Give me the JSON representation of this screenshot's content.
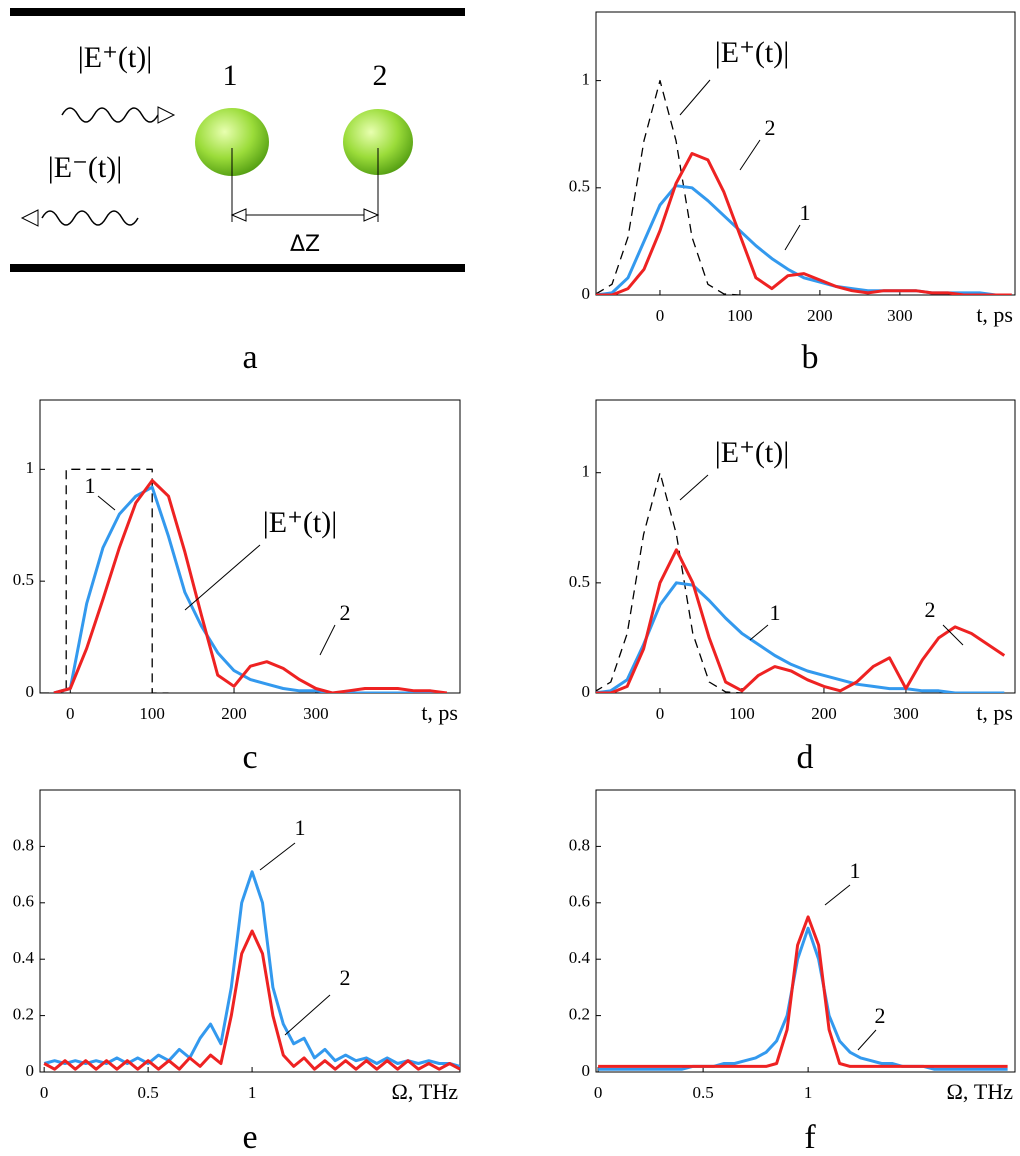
{
  "diagram": {
    "wave_forward": "|E⁺(t)|",
    "wave_backward": "|E⁻(t)|",
    "particle_1": "1",
    "particle_2": "2",
    "distance": "ΔZ",
    "panel_label": "a"
  },
  "chart_data": [
    {
      "type": "line",
      "panel_label": "b",
      "x_label": "t, ps",
      "xlim": [
        -80,
        444
      ],
      "ylim": [
        0,
        1.32
      ],
      "xticks": [
        0,
        100,
        200,
        300
      ],
      "yticks": [
        0,
        0.5,
        1
      ],
      "x": [
        -80,
        -60,
        -40,
        -20,
        0,
        20,
        40,
        60,
        80,
        100,
        120,
        140,
        160,
        180,
        200,
        220,
        240,
        260,
        280,
        300,
        320,
        340,
        360,
        380,
        400,
        420,
        440
      ],
      "series": [
        {
          "name": "|E⁺(t)|",
          "color": "#000000",
          "line_style": "dashed",
          "values": [
            0.005,
            0.05,
            0.27,
            0.72,
            1,
            0.72,
            0.27,
            0.05,
            0.005,
            0,
            null,
            null,
            null,
            null,
            null,
            null,
            null,
            null,
            null,
            null,
            null,
            null,
            null,
            null,
            null,
            null,
            null
          ]
        },
        {
          "name": "1",
          "color": "#3399ee",
          "values": [
            0,
            0.01,
            0.08,
            0.25,
            0.42,
            0.51,
            0.5,
            0.44,
            0.37,
            0.3,
            0.23,
            0.17,
            0.12,
            0.08,
            0.06,
            0.04,
            0.03,
            0.02,
            0.02,
            0.02,
            0.02,
            0.01,
            0.01,
            0.01,
            0.01,
            0,
            0
          ]
        },
        {
          "name": "2",
          "color": "#ee2222",
          "values": [
            0,
            0,
            0.03,
            0.12,
            0.3,
            0.52,
            0.66,
            0.63,
            0.48,
            0.28,
            0.08,
            0.03,
            0.09,
            0.1,
            0.07,
            0.04,
            0.02,
            0.01,
            0.02,
            0.02,
            0.02,
            0.01,
            0.01,
            0,
            0,
            0,
            0
          ]
        }
      ]
    },
    {
      "type": "line",
      "panel_label": "c",
      "x_label": "t, ps",
      "xlim": [
        -37,
        476
      ],
      "ylim": [
        0,
        1.31
      ],
      "xticks": [
        0,
        100,
        200,
        300
      ],
      "yticks": [
        0,
        0.5,
        1
      ],
      "x": [
        -20,
        0,
        20,
        40,
        60,
        80,
        100,
        120,
        140,
        160,
        180,
        200,
        220,
        240,
        260,
        280,
        300,
        320,
        340,
        360,
        380,
        400,
        420,
        440,
        460
      ],
      "series": [
        {
          "name": "|E⁺(t)|",
          "color": "#000000",
          "line_style": "dashed",
          "x": [
            -37,
            -5,
            -5,
            100,
            100,
            120
          ],
          "values": [
            0,
            0,
            1,
            1,
            0,
            0
          ]
        },
        {
          "name": "1",
          "color": "#3399ee",
          "values": [
            0,
            0.02,
            0.4,
            0.65,
            0.8,
            0.88,
            0.92,
            0.7,
            0.45,
            0.3,
            0.18,
            0.1,
            0.06,
            0.04,
            0.02,
            0.01,
            0.01,
            0,
            0,
            0,
            0,
            0,
            0,
            0,
            0
          ]
        },
        {
          "name": "2",
          "color": "#ee2222",
          "values": [
            0,
            0.02,
            0.2,
            0.42,
            0.65,
            0.85,
            0.95,
            0.88,
            0.63,
            0.35,
            0.08,
            0.03,
            0.12,
            0.14,
            0.11,
            0.06,
            0.02,
            0,
            0.01,
            0.02,
            0.02,
            0.02,
            0.01,
            0.01,
            0
          ]
        }
      ]
    },
    {
      "type": "line",
      "panel_label": "d",
      "x_label": "t, ps",
      "xlim": [
        -78,
        433
      ],
      "ylim": [
        0,
        1.33
      ],
      "xticks": [
        0,
        100,
        200,
        300
      ],
      "yticks": [
        0,
        0.5,
        1
      ],
      "x": [
        -80,
        -60,
        -40,
        -20,
        0,
        20,
        40,
        60,
        80,
        100,
        120,
        140,
        160,
        180,
        200,
        220,
        240,
        260,
        280,
        300,
        320,
        340,
        360,
        380,
        400,
        420
      ],
      "series": [
        {
          "name": "|E⁺(t)|",
          "color": "#000000",
          "line_style": "dashed",
          "values": [
            0.005,
            0.05,
            0.27,
            0.72,
            1,
            0.72,
            0.27,
            0.05,
            0.005,
            0,
            null,
            null,
            null,
            null,
            null,
            null,
            null,
            null,
            null,
            null,
            null,
            null,
            null,
            null,
            null,
            null
          ]
        },
        {
          "name": "1",
          "color": "#3399ee",
          "values": [
            0,
            0.01,
            0.06,
            0.22,
            0.4,
            0.5,
            0.49,
            0.42,
            0.34,
            0.27,
            0.22,
            0.17,
            0.13,
            0.1,
            0.08,
            0.06,
            0.04,
            0.03,
            0.02,
            0.02,
            0.01,
            0.01,
            0,
            0,
            0,
            0
          ]
        },
        {
          "name": "2",
          "color": "#ee2222",
          "values": [
            0,
            0,
            0.03,
            0.2,
            0.5,
            0.65,
            0.5,
            0.25,
            0.05,
            0.01,
            0.08,
            0.12,
            0.1,
            0.06,
            0.03,
            0.01,
            0.05,
            0.12,
            0.16,
            0.02,
            0.15,
            0.25,
            0.3,
            0.27,
            0.22,
            0.17
          ]
        }
      ]
    },
    {
      "type": "line",
      "panel_label": "e",
      "x_label": "Ω, THz",
      "xlim": [
        -0.02,
        2
      ],
      "ylim": [
        0,
        1.0
      ],
      "xticks": [
        0,
        0.5,
        1
      ],
      "yticks": [
        0,
        0.2,
        0.4,
        0.6,
        0.8
      ],
      "x": [
        0,
        0.05,
        0.1,
        0.15,
        0.2,
        0.25,
        0.3,
        0.35,
        0.4,
        0.45,
        0.5,
        0.55,
        0.6,
        0.65,
        0.7,
        0.75,
        0.8,
        0.85,
        0.9,
        0.95,
        1,
        1.05,
        1.1,
        1.15,
        1.2,
        1.25,
        1.3,
        1.35,
        1.4,
        1.45,
        1.5,
        1.55,
        1.6,
        1.65,
        1.7,
        1.75,
        1.8,
        1.85,
        1.9,
        1.95,
        2
      ],
      "series": [
        {
          "name": "1",
          "color": "#3399ee",
          "values": [
            0.03,
            0.04,
            0.03,
            0.04,
            0.03,
            0.04,
            0.03,
            0.05,
            0.03,
            0.05,
            0.03,
            0.06,
            0.04,
            0.08,
            0.05,
            0.12,
            0.17,
            0.1,
            0.3,
            0.6,
            0.71,
            0.6,
            0.3,
            0.17,
            0.1,
            0.12,
            0.05,
            0.08,
            0.04,
            0.06,
            0.04,
            0.05,
            0.03,
            0.05,
            0.03,
            0.04,
            0.03,
            0.04,
            0.03,
            0.03,
            0.02
          ]
        },
        {
          "name": "2",
          "color": "#ee2222",
          "values": [
            0.03,
            0.01,
            0.04,
            0.01,
            0.04,
            0.01,
            0.04,
            0.01,
            0.04,
            0.01,
            0.04,
            0.01,
            0.04,
            0.01,
            0.05,
            0.02,
            0.06,
            0.03,
            0.2,
            0.42,
            0.5,
            0.42,
            0.2,
            0.06,
            0.02,
            0.05,
            0.01,
            0.04,
            0.01,
            0.04,
            0.01,
            0.04,
            0.01,
            0.04,
            0.01,
            0.04,
            0.01,
            0.03,
            0.01,
            0.03,
            0.01
          ]
        }
      ]
    },
    {
      "type": "line",
      "panel_label": "f",
      "x_label": "Ω, THz",
      "xlim": [
        -0.01,
        1.985
      ],
      "ylim": [
        0,
        1.0
      ],
      "xticks": [
        0,
        0.5,
        1
      ],
      "yticks": [
        0,
        0.2,
        0.4,
        0.6,
        0.8
      ],
      "x": [
        0,
        0.05,
        0.1,
        0.15,
        0.2,
        0.25,
        0.3,
        0.35,
        0.4,
        0.45,
        0.5,
        0.55,
        0.6,
        0.65,
        0.7,
        0.75,
        0.8,
        0.85,
        0.9,
        0.95,
        1,
        1.05,
        1.1,
        1.15,
        1.2,
        1.25,
        1.3,
        1.35,
        1.4,
        1.45,
        1.5,
        1.55,
        1.6,
        1.65,
        1.7,
        1.75,
        1.8,
        1.85,
        1.9,
        1.95
      ],
      "series": [
        {
          "name": "1",
          "color": "#3399ee",
          "values": [
            0.01,
            0.01,
            0.01,
            0.01,
            0.01,
            0.01,
            0.01,
            0.01,
            0.01,
            0.02,
            0.02,
            0.02,
            0.03,
            0.03,
            0.04,
            0.05,
            0.07,
            0.11,
            0.2,
            0.4,
            0.51,
            0.4,
            0.2,
            0.11,
            0.07,
            0.05,
            0.04,
            0.03,
            0.03,
            0.02,
            0.02,
            0.02,
            0.01,
            0.01,
            0.01,
            0.01,
            0.01,
            0.01,
            0.01,
            0.01
          ]
        },
        {
          "name": "2",
          "color": "#ee2222",
          "values": [
            0.02,
            0.02,
            0.02,
            0.02,
            0.02,
            0.02,
            0.02,
            0.02,
            0.02,
            0.02,
            0.02,
            0.02,
            0.02,
            0.02,
            0.02,
            0.02,
            0.02,
            0.03,
            0.15,
            0.45,
            0.55,
            0.45,
            0.15,
            0.03,
            0.02,
            0.02,
            0.02,
            0.02,
            0.02,
            0.02,
            0.02,
            0.02,
            0.02,
            0.02,
            0.02,
            0.02,
            0.02,
            0.02,
            0.02,
            0.02
          ]
        }
      ]
    }
  ]
}
